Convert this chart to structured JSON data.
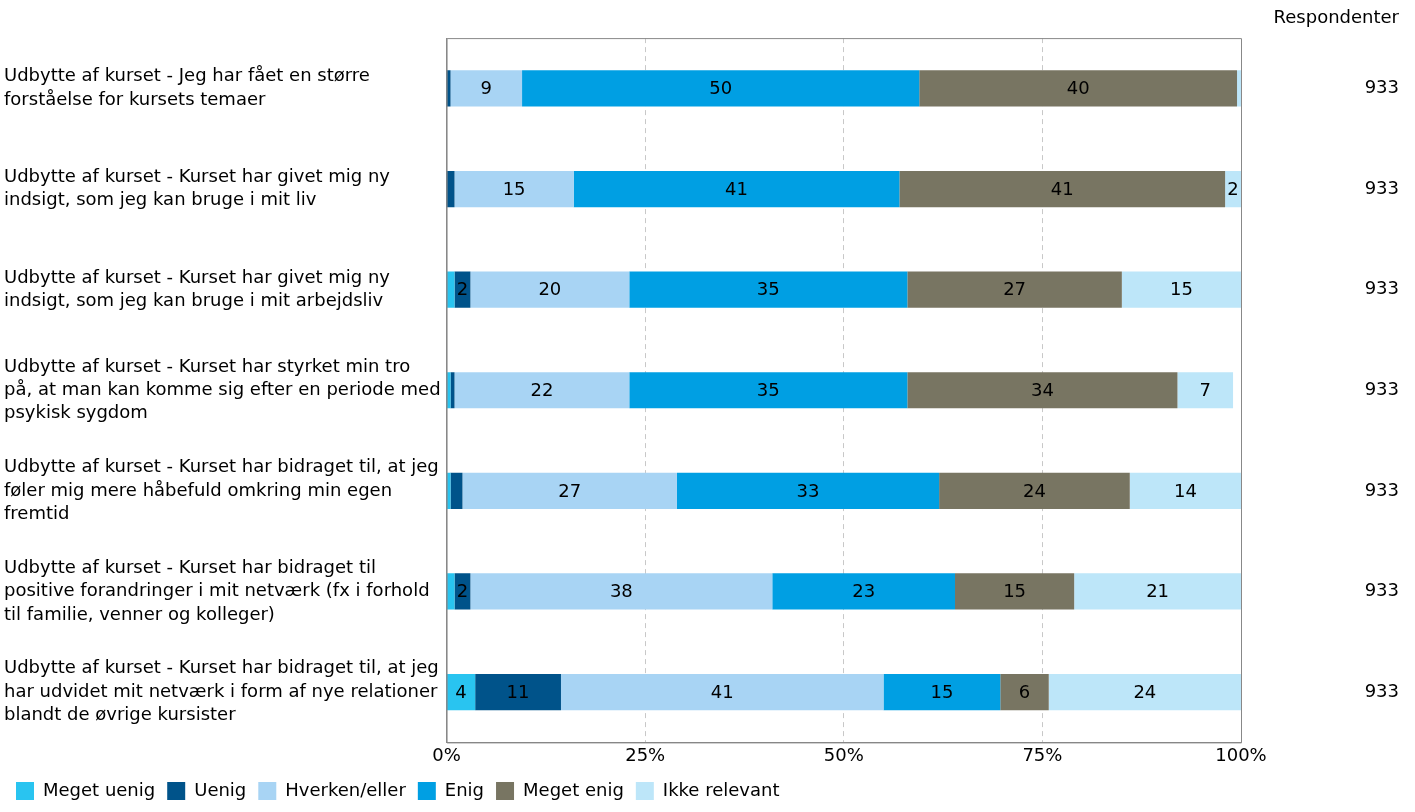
{
  "chart_data": {
    "type": "bar",
    "orientation": "horizontal",
    "stacked": true,
    "categories": [
      "Udbytte af kurset - Jeg har fået en større forståelse for kursets temaer",
      "Udbytte af kurset - Kurset har givet mig ny indsigt, som jeg kan bruge i mit liv",
      "Udbytte af kurset - Kurset har givet mig ny indsigt, som jeg kan bruge i mit arbejdsliv",
      "Udbytte af kurset - Kurset har styrket min tro på, at man kan komme sig efter en periode med psykisk sygdom",
      "Udbytte af kurset - Kurset har bidraget til, at jeg føler mig mere håbefuld omkring min egen fremtid",
      "Udbytte af kurset - Kurset har bidraget til positive forandringer i mit netværk (fx i forhold til familie, venner og kolleger)",
      "Udbytte af kurset - Kurset har bidraget til, at jeg har udvidet mit netværk i form af nye relationer blandt de øvrige kursister"
    ],
    "series": [
      {
        "name": "Meget uenig",
        "color": "#29c4f0",
        "values": [
          0,
          0,
          1,
          0.5,
          0.5,
          1,
          3.6
        ],
        "value_labels": [
          null,
          null,
          null,
          null,
          null,
          null,
          "4"
        ]
      },
      {
        "name": "Uenig",
        "color": "#00538a",
        "values": [
          0.5,
          1,
          2,
          0.5,
          1.5,
          2,
          10.8
        ],
        "value_labels": [
          null,
          null,
          "2",
          null,
          null,
          "2",
          "11"
        ]
      },
      {
        "name": "Hverken/eller",
        "color": "#a8d4f4",
        "values": [
          9,
          15,
          20,
          22,
          27,
          38,
          40.6
        ],
        "value_labels": [
          "9",
          "15",
          "20",
          "22",
          "27",
          "38",
          "41"
        ]
      },
      {
        "name": "Enig",
        "color": "#009fe3",
        "values": [
          50,
          41,
          35,
          35,
          33,
          23,
          14.7
        ],
        "value_labels": [
          "50",
          "41",
          "35",
          "35",
          "33",
          "23",
          "15"
        ]
      },
      {
        "name": "Meget enig",
        "color": "#787562",
        "values": [
          40,
          41,
          27,
          34,
          24,
          15,
          6.1
        ],
        "value_labels": [
          "40",
          "41",
          "27",
          "34",
          "24",
          "15",
          "6"
        ]
      },
      {
        "name": "Ikke relevant",
        "color": "#bde6f9",
        "values": [
          0.5,
          2,
          15,
          7,
          14,
          21,
          24.2
        ],
        "value_labels": [
          null,
          "2",
          "15",
          "7",
          "14",
          "21",
          "24"
        ]
      }
    ],
    "xlim": [
      0,
      100
    ],
    "xticks": [
      {
        "value": 0,
        "label": "0%"
      },
      {
        "value": 25,
        "label": "25%"
      },
      {
        "value": 50,
        "label": "50%"
      },
      {
        "value": 75,
        "label": "75%"
      },
      {
        "value": 100,
        "label": "100%"
      }
    ],
    "grid": "x",
    "legend": "bottom",
    "annotations": [
      "Respondenter",
      "933",
      "933",
      "933",
      "933",
      "933",
      "933",
      "933"
    ]
  }
}
